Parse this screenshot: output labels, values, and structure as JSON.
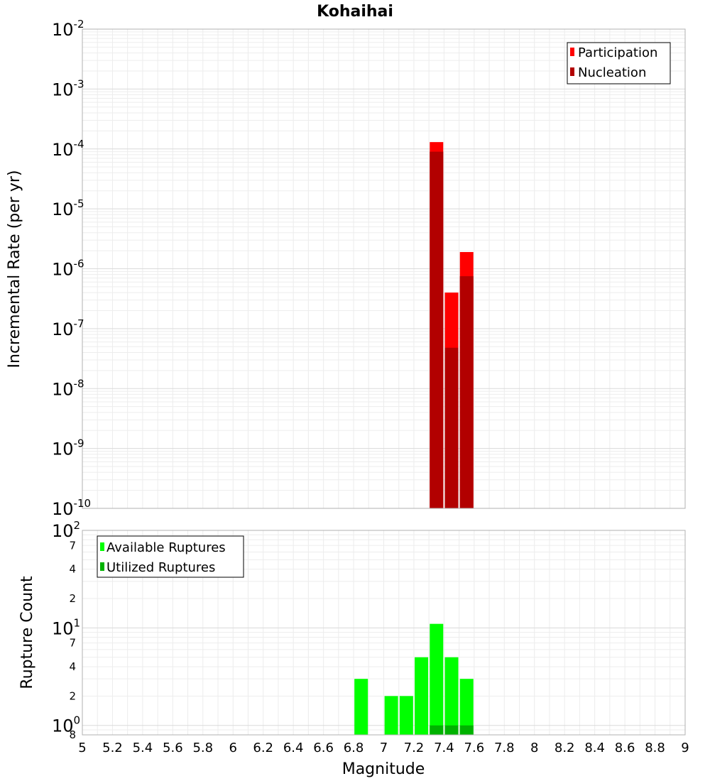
{
  "chart_data": [
    {
      "type": "bar",
      "title": "Kohaihai",
      "xlabel": "Magnitude",
      "ylabel": "Incremental Rate (per yr)",
      "yscale": "log",
      "xlim": [
        5,
        9
      ],
      "ylim": [
        1e-10,
        0.01
      ],
      "grid": true,
      "legend": "top-right",
      "series": [
        {
          "name": "Participation",
          "color": "#ff0000",
          "x": [
            7.35,
            7.45,
            7.55
          ],
          "values": [
            0.00013,
            4e-07,
            1.9e-06
          ]
        },
        {
          "name": "Nucleation",
          "color": "#b20000",
          "x": [
            7.35,
            7.45,
            7.55
          ],
          "values": [
            9e-05,
            4.8e-08,
            7.5e-07
          ]
        }
      ]
    },
    {
      "type": "bar",
      "xlabel": "Magnitude",
      "ylabel": "Rupture Count",
      "yscale": "log",
      "xlim": [
        5,
        9
      ],
      "ylim": [
        0.8,
        100
      ],
      "grid": true,
      "legend": "top-left",
      "series": [
        {
          "name": "Available Ruptures",
          "color": "#00ff00",
          "x": [
            6.85,
            7.05,
            7.15,
            7.25,
            7.35,
            7.45,
            7.55
          ],
          "values": [
            3,
            2,
            2,
            5,
            11,
            5,
            3
          ]
        },
        {
          "name": "Utilized Ruptures",
          "color": "#00b200",
          "x": [
            7.35,
            7.45,
            7.55
          ],
          "values": [
            1,
            1,
            1
          ]
        }
      ]
    }
  ],
  "axes": {
    "x_ticks": [
      "5",
      "5.2",
      "5.4",
      "5.6",
      "5.8",
      "6",
      "6.2",
      "6.4",
      "6.6",
      "6.8",
      "7",
      "7.2",
      "7.4",
      "7.6",
      "7.8",
      "8",
      "8.2",
      "8.4",
      "8.6",
      "8.8",
      "9"
    ],
    "top_y_ticks": [
      {
        "base": "10",
        "exp": "-2"
      },
      {
        "base": "10",
        "exp": "-3"
      },
      {
        "base": "10",
        "exp": "-4"
      },
      {
        "base": "10",
        "exp": "-5"
      },
      {
        "base": "10",
        "exp": "-6"
      },
      {
        "base": "10",
        "exp": "-7"
      },
      {
        "base": "10",
        "exp": "-8"
      },
      {
        "base": "10",
        "exp": "-9"
      },
      {
        "base": "10",
        "exp": "-10"
      }
    ],
    "bottom_y_major": [
      {
        "base": "10",
        "exp": "2"
      },
      {
        "base": "10",
        "exp": "1"
      },
      {
        "base": "10",
        "exp": "0"
      }
    ],
    "bottom_y_minor": [
      "7",
      "4",
      "2",
      "7",
      "4",
      "2",
      "8"
    ]
  }
}
